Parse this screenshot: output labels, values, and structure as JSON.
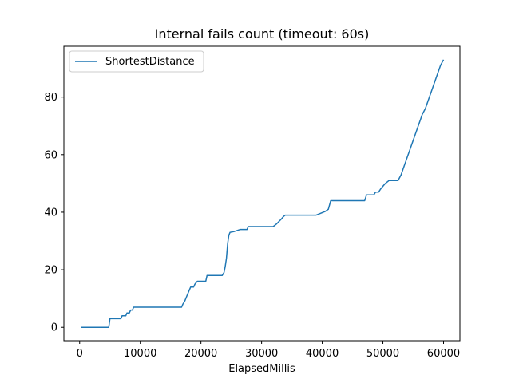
{
  "chart_data": {
    "type": "line",
    "title": "Internal fails count (timeout: 60s)",
    "xlabel": "ElapsedMillis",
    "ylabel": "",
    "xlim": [
      -2600,
      62700
    ],
    "ylim": [
      -4.65,
      97.65
    ],
    "xticks": [
      0,
      10000,
      20000,
      30000,
      40000,
      50000,
      60000
    ],
    "xtick_labels": [
      "0",
      "10000",
      "20000",
      "30000",
      "40000",
      "50000",
      "60000"
    ],
    "yticks": [
      0,
      20,
      40,
      60,
      80
    ],
    "ytick_labels": [
      "0",
      "20",
      "40",
      "60",
      "80"
    ],
    "grid": false,
    "legend_position": "upper-left",
    "series": [
      {
        "name": "ShortestDistance",
        "color": "#1f77b4",
        "points": [
          [
            200,
            0
          ],
          [
            4800,
            0
          ],
          [
            5000,
            3
          ],
          [
            6800,
            3
          ],
          [
            7000,
            4
          ],
          [
            7600,
            4
          ],
          [
            7800,
            5
          ],
          [
            8200,
            5
          ],
          [
            8400,
            6
          ],
          [
            8700,
            6
          ],
          [
            8900,
            7
          ],
          [
            16800,
            7
          ],
          [
            17000,
            8
          ],
          [
            17300,
            9
          ],
          [
            17500,
            10
          ],
          [
            17700,
            11
          ],
          [
            17900,
            12
          ],
          [
            18100,
            13
          ],
          [
            18300,
            14
          ],
          [
            18800,
            14
          ],
          [
            19000,
            15
          ],
          [
            19400,
            16
          ],
          [
            20800,
            16
          ],
          [
            21000,
            18
          ],
          [
            23500,
            18
          ],
          [
            23800,
            19
          ],
          [
            24000,
            21
          ],
          [
            24200,
            24
          ],
          [
            24400,
            29
          ],
          [
            24600,
            32
          ],
          [
            24800,
            33
          ],
          [
            25500,
            33.3
          ],
          [
            26500,
            34
          ],
          [
            27600,
            34
          ],
          [
            27800,
            35
          ],
          [
            31900,
            35
          ],
          [
            32500,
            36
          ],
          [
            33200,
            37.5
          ],
          [
            33600,
            38.5
          ],
          [
            33900,
            39
          ],
          [
            39000,
            39
          ],
          [
            40500,
            40.3
          ],
          [
            41000,
            41
          ],
          [
            41400,
            44
          ],
          [
            47000,
            44
          ],
          [
            47300,
            46
          ],
          [
            48500,
            46
          ],
          [
            48800,
            47
          ],
          [
            49300,
            47
          ],
          [
            49600,
            48
          ],
          [
            50000,
            49
          ],
          [
            50400,
            50
          ],
          [
            51000,
            51
          ],
          [
            52500,
            51
          ],
          [
            53000,
            53
          ],
          [
            53500,
            56
          ],
          [
            54000,
            59
          ],
          [
            54500,
            62
          ],
          [
            55000,
            65
          ],
          [
            55500,
            68
          ],
          [
            56000,
            71
          ],
          [
            56500,
            74
          ],
          [
            57000,
            76
          ],
          [
            57500,
            79
          ],
          [
            58000,
            82
          ],
          [
            58500,
            85
          ],
          [
            59000,
            88
          ],
          [
            59500,
            91
          ],
          [
            60000,
            93
          ]
        ]
      }
    ]
  }
}
